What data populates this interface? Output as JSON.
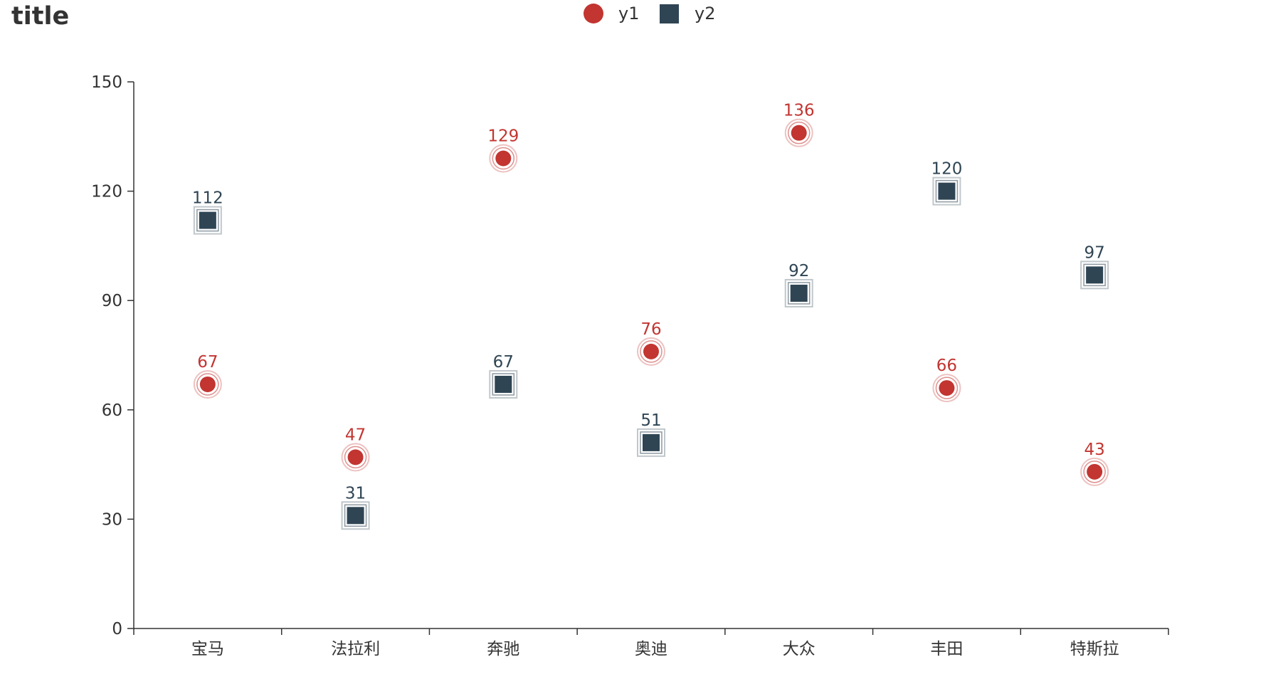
{
  "chart_data": {
    "type": "scatter",
    "title": "title",
    "categories": [
      "宝马",
      "法拉利",
      "奔驰",
      "奥迪",
      "大众",
      "丰田",
      "特斯拉"
    ],
    "series": [
      {
        "name": "y1",
        "symbol": "circle",
        "color": "#c23531",
        "values": [
          67,
          47,
          129,
          76,
          136,
          66,
          43
        ]
      },
      {
        "name": "y2",
        "symbol": "square",
        "color": "#2f4554",
        "values": [
          112,
          31,
          67,
          51,
          92,
          120,
          97
        ]
      }
    ],
    "ylim": [
      0,
      150
    ],
    "yticks": [
      0,
      30,
      60,
      90,
      120,
      150
    ],
    "xlabel": "",
    "ylabel": "",
    "grid": false,
    "legend_position": "top-center",
    "data_labels": true,
    "axis_color": "#333333"
  }
}
